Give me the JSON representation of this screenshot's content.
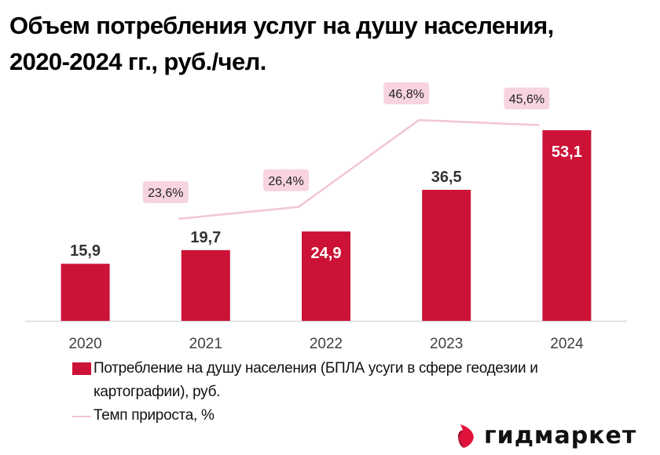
{
  "title_line1": "Объем потребления услуг на душу населения,",
  "title_line2": "2020-2024 гг., руб./чел.",
  "colors": {
    "bar": "#cc1236",
    "line": "#f2c5d2",
    "label_box": "#f7d4df",
    "dark_label": "#333333",
    "light_label": "#ffffff",
    "axis": "#d9d9d9",
    "tick": "#404040"
  },
  "chart_data": {
    "type": "bar",
    "title": "Объем потребления услуг на душу населения, 2020-2024 гг., руб./чел.",
    "xlabel": "",
    "ylabel": "",
    "categories": [
      "2020",
      "2021",
      "2022",
      "2023",
      "2024"
    ],
    "series": [
      {
        "name": "Потребление на душу населения (БПЛА усуги в сфере геодезии и картографии), руб.",
        "type": "bar",
        "values": [
          15.9,
          19.7,
          24.9,
          36.5,
          53.1
        ],
        "labels": [
          "15,9",
          "19,7",
          "24,9",
          "36,5",
          "53,1"
        ],
        "label_inside": [
          false,
          false,
          true,
          false,
          true
        ]
      },
      {
        "name": "Темп прироста, %",
        "type": "line",
        "axis": "secondary",
        "x": [
          "2021",
          "2022",
          "2023",
          "2024"
        ],
        "values": [
          23.6,
          26.4,
          46.8,
          45.6
        ],
        "labels": [
          "23,6%",
          "26,4%",
          "46,8%",
          "45,6%"
        ]
      }
    ],
    "ylim": [
      0,
      55
    ],
    "y2lim": [
      -25,
      55
    ],
    "grid": false,
    "legend": "bottom-left"
  },
  "legend": {
    "bar_label": "Потребление на душу населения (БПЛА усуги в сфере геодезии и картографии), руб.",
    "line_label": "Темп прироста, %"
  },
  "logo": {
    "text": "гидмаркет",
    "icon": "gidmarket-logo-icon"
  }
}
